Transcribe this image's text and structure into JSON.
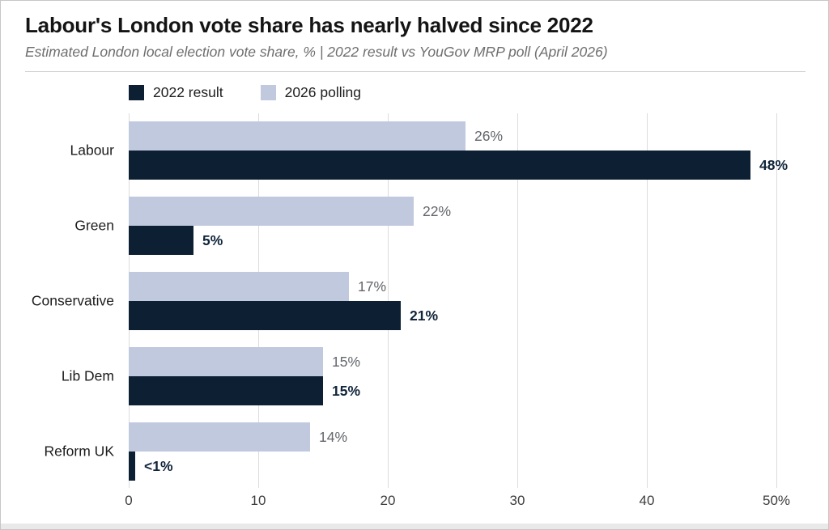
{
  "header": {
    "title": "Labour's London vote share has nearly halved since 2022",
    "subtitle": "Estimated London local election vote share, %  |  2022 result vs YouGov MRP poll (April 2026)"
  },
  "chart_data": {
    "type": "bar",
    "orientation": "horizontal",
    "title": "Labour's London vote share has nearly halved since 2022",
    "subtitle": "Estimated London local election vote share, % | 2022 result vs YouGov MRP poll (April 2026)",
    "categories": [
      "Labour",
      "Green",
      "Conservative",
      "Lib Dem",
      "Reform UK"
    ],
    "series": [
      {
        "name": "2022 result",
        "color": "#0d2033",
        "value_label_color": "#10243a",
        "value_label_bold": true,
        "values": [
          48,
          5,
          21,
          15,
          0.5
        ],
        "value_labels": [
          "48%",
          "5%",
          "21%",
          "15%",
          "<1%"
        ]
      },
      {
        "name": "2026 polling",
        "color": "#c1c9df",
        "value_label_color": "#63666b",
        "value_label_bold": false,
        "values": [
          26,
          22,
          17,
          15,
          14
        ],
        "value_labels": [
          "26%",
          "22%",
          "17%",
          "15%",
          "14%"
        ]
      }
    ],
    "row_order_within_group": [
      "2026 polling",
      "2022 result"
    ],
    "xlim": [
      0,
      50
    ],
    "tick_values": [
      0,
      10,
      20,
      30,
      40,
      50
    ],
    "tick_labels": [
      "0",
      "10",
      "20",
      "30",
      "40",
      "50%"
    ],
    "grid": "vertical gridlines, light gray",
    "legend_position": "top-left above plot"
  }
}
